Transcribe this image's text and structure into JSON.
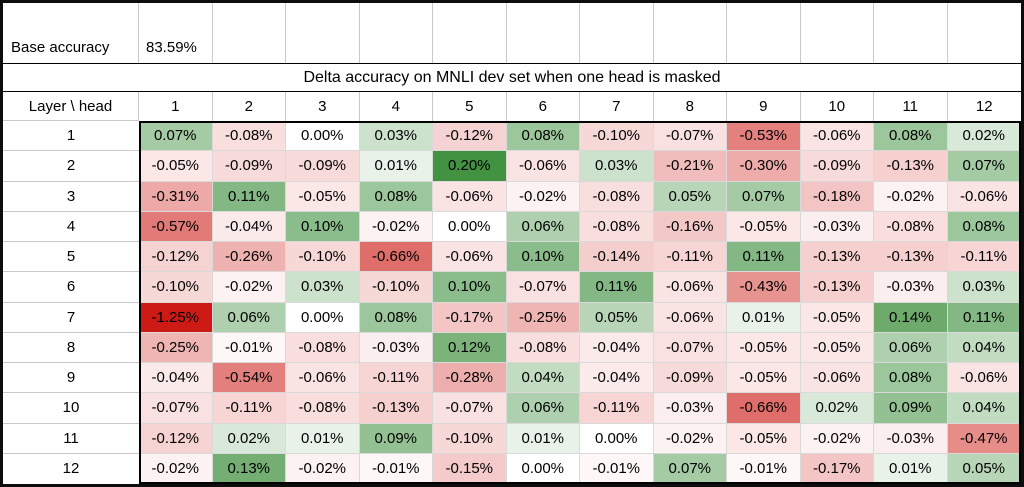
{
  "base": {
    "label": "Base accuracy",
    "value": "83.59%"
  },
  "chart_data": {
    "type": "heatmap",
    "title": "Delta accuracy on MNLI dev set when one head is masked",
    "corner_label": "Layer \\ head",
    "base_accuracy": "83.59%",
    "unit": "%",
    "col_headers": [
      "1",
      "2",
      "3",
      "4",
      "5",
      "6",
      "7",
      "8",
      "9",
      "10",
      "11",
      "12"
    ],
    "row_headers": [
      "1",
      "2",
      "3",
      "4",
      "5",
      "6",
      "7",
      "8",
      "9",
      "10",
      "11",
      "12"
    ],
    "values_pct": [
      [
        0.07,
        -0.08,
        0.0,
        0.03,
        -0.12,
        0.08,
        -0.1,
        -0.07,
        -0.53,
        -0.06,
        0.08,
        0.02
      ],
      [
        -0.05,
        -0.09,
        -0.09,
        0.01,
        0.2,
        -0.06,
        0.03,
        -0.21,
        -0.3,
        -0.09,
        -0.13,
        0.07
      ],
      [
        -0.31,
        0.11,
        -0.05,
        0.08,
        -0.06,
        -0.02,
        -0.08,
        0.05,
        0.07,
        -0.18,
        -0.02,
        -0.06
      ],
      [
        -0.57,
        -0.04,
        0.1,
        -0.02,
        0.0,
        0.06,
        -0.08,
        -0.16,
        -0.05,
        -0.03,
        -0.08,
        0.08
      ],
      [
        -0.12,
        -0.26,
        -0.1,
        -0.66,
        -0.06,
        0.1,
        -0.14,
        -0.11,
        0.11,
        -0.13,
        -0.13,
        -0.11
      ],
      [
        -0.1,
        -0.02,
        0.03,
        -0.1,
        0.1,
        -0.07,
        0.11,
        -0.06,
        -0.43,
        -0.13,
        -0.03,
        0.03
      ],
      [
        -1.25,
        0.06,
        0.0,
        0.08,
        -0.17,
        -0.25,
        0.05,
        -0.06,
        0.01,
        -0.05,
        0.14,
        0.11
      ],
      [
        -0.25,
        -0.01,
        -0.08,
        -0.03,
        0.12,
        -0.08,
        -0.04,
        -0.07,
        -0.05,
        -0.05,
        0.06,
        0.04
      ],
      [
        -0.04,
        -0.54,
        -0.06,
        -0.11,
        -0.28,
        0.04,
        -0.04,
        -0.09,
        -0.05,
        -0.06,
        0.08,
        -0.06
      ],
      [
        -0.07,
        -0.11,
        -0.08,
        -0.13,
        -0.07,
        0.06,
        -0.11,
        -0.03,
        -0.66,
        0.02,
        0.09,
        0.04
      ],
      [
        -0.12,
        0.02,
        0.01,
        0.09,
        -0.1,
        0.01,
        0.0,
        -0.02,
        -0.05,
        -0.02,
        -0.03,
        -0.47
      ],
      [
        -0.02,
        0.13,
        -0.02,
        -0.01,
        -0.15,
        0.0,
        -0.01,
        0.07,
        -0.01,
        -0.17,
        0.01,
        0.05
      ]
    ],
    "color_scale": {
      "zero_color": "#FFFFFF",
      "positive_max_color": "#439242",
      "negative_max_color": "#CD1A15",
      "positive_limit_pct": 0.2,
      "negative_limit_pct": -1.25,
      "gamma": 0.7
    },
    "legend_position": "none",
    "grid": true
  }
}
